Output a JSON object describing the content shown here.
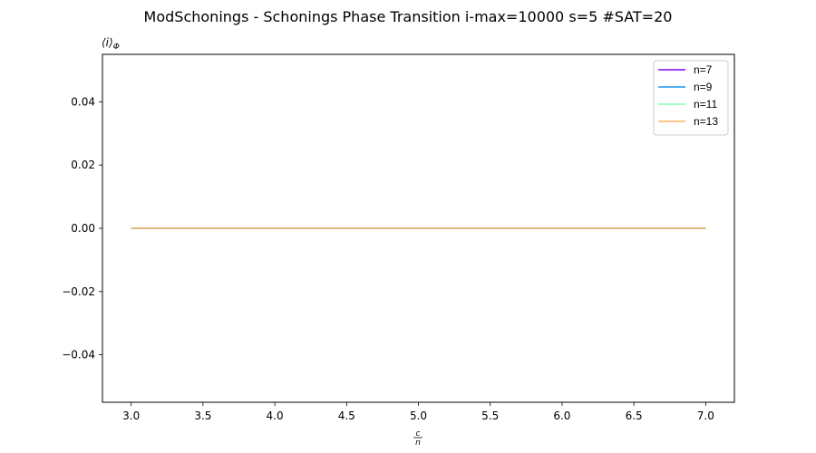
{
  "chart_data": {
    "type": "line",
    "title": "ModSchonings - Schonings Phase Transition  i-max=10000 s=5 #SAT=20",
    "xlabel": {
      "numerator": "c",
      "denominator": "n"
    },
    "ylabel": {
      "main": "⟨i⟩",
      "sub": "Φ"
    },
    "xlim": [
      2.8,
      7.2
    ],
    "ylim": [
      -0.055,
      0.055
    ],
    "xticks": [
      3.0,
      3.5,
      4.0,
      4.5,
      5.0,
      5.5,
      6.0,
      6.5,
      7.0
    ],
    "xtick_labels": [
      "3.0",
      "3.5",
      "4.0",
      "4.5",
      "5.0",
      "5.5",
      "6.0",
      "6.5",
      "7.0"
    ],
    "yticks": [
      0.04,
      0.02,
      0.0,
      -0.02,
      -0.04
    ],
    "ytick_labels": [
      "0.04",
      "0.02",
      "0.00",
      "−0.02",
      "−0.04"
    ],
    "grid": false,
    "legend_position": "top-right",
    "series": [
      {
        "name": "n=7",
        "color": "#8000ff",
        "x": [
          3.0,
          7.0
        ],
        "y": [
          0.0,
          0.0
        ]
      },
      {
        "name": "n=9",
        "color": "#1996f3",
        "x": [
          3.0,
          7.0
        ],
        "y": [
          0.0,
          0.0
        ]
      },
      {
        "name": "n=11",
        "color": "#80ffb4",
        "x": [
          3.0,
          7.0
        ],
        "y": [
          0.0,
          0.0
        ]
      },
      {
        "name": "n=13",
        "color": "#ffb360",
        "x": [
          3.0,
          7.0
        ],
        "y": [
          0.0,
          0.0
        ]
      }
    ]
  }
}
